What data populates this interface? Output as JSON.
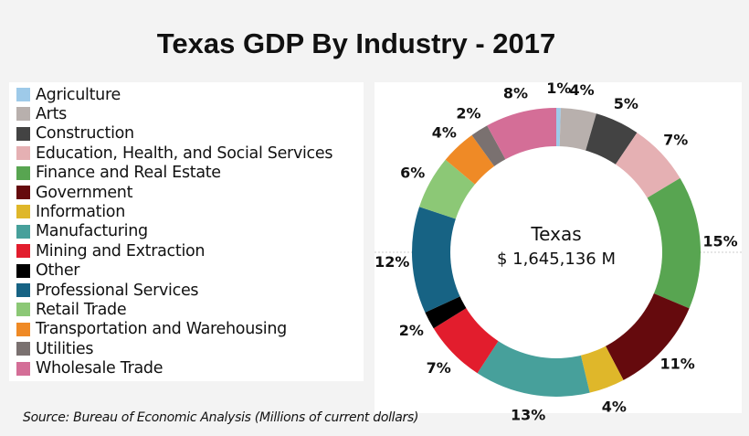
{
  "chart_data": {
    "type": "pie",
    "donut": true,
    "title": "Texas GDP By Industry - 2017",
    "center_label": "Texas",
    "center_value": "$ 1,645,136 M",
    "source": "Source: Bureau of Economic Analysis (Millions of current dollars)",
    "legend_position": "left",
    "categories": [
      "Agriculture",
      "Arts",
      "Construction",
      "Education, Health, and Social Services",
      "Finance and Real Estate",
      "Government",
      "Information",
      "Manufacturing",
      "Mining and Extraction",
      "Other",
      "Professional Services",
      "Retail Trade",
      "Transportation and Warehousing",
      "Utilities",
      "Wholesale Trade"
    ],
    "values": [
      1,
      4,
      5,
      7,
      15,
      11,
      4,
      13,
      7,
      2,
      12,
      6,
      4,
      2,
      8
    ],
    "labels": [
      "1%",
      "4%",
      "5%",
      "7%",
      "15%",
      "11%",
      "4%",
      "13%",
      "7%",
      "2%",
      "12%",
      "6%",
      "4%",
      "2%",
      "8%"
    ],
    "colors": [
      "#9ecae9",
      "#b8b0ad",
      "#434343",
      "#e5b0b3",
      "#58a551",
      "#650a0d",
      "#dfb72a",
      "#47a09b",
      "#e21d2d",
      "#000000",
      "#176384",
      "#8cc876",
      "#ef8a26",
      "#7a7170",
      "#d46e97"
    ]
  }
}
